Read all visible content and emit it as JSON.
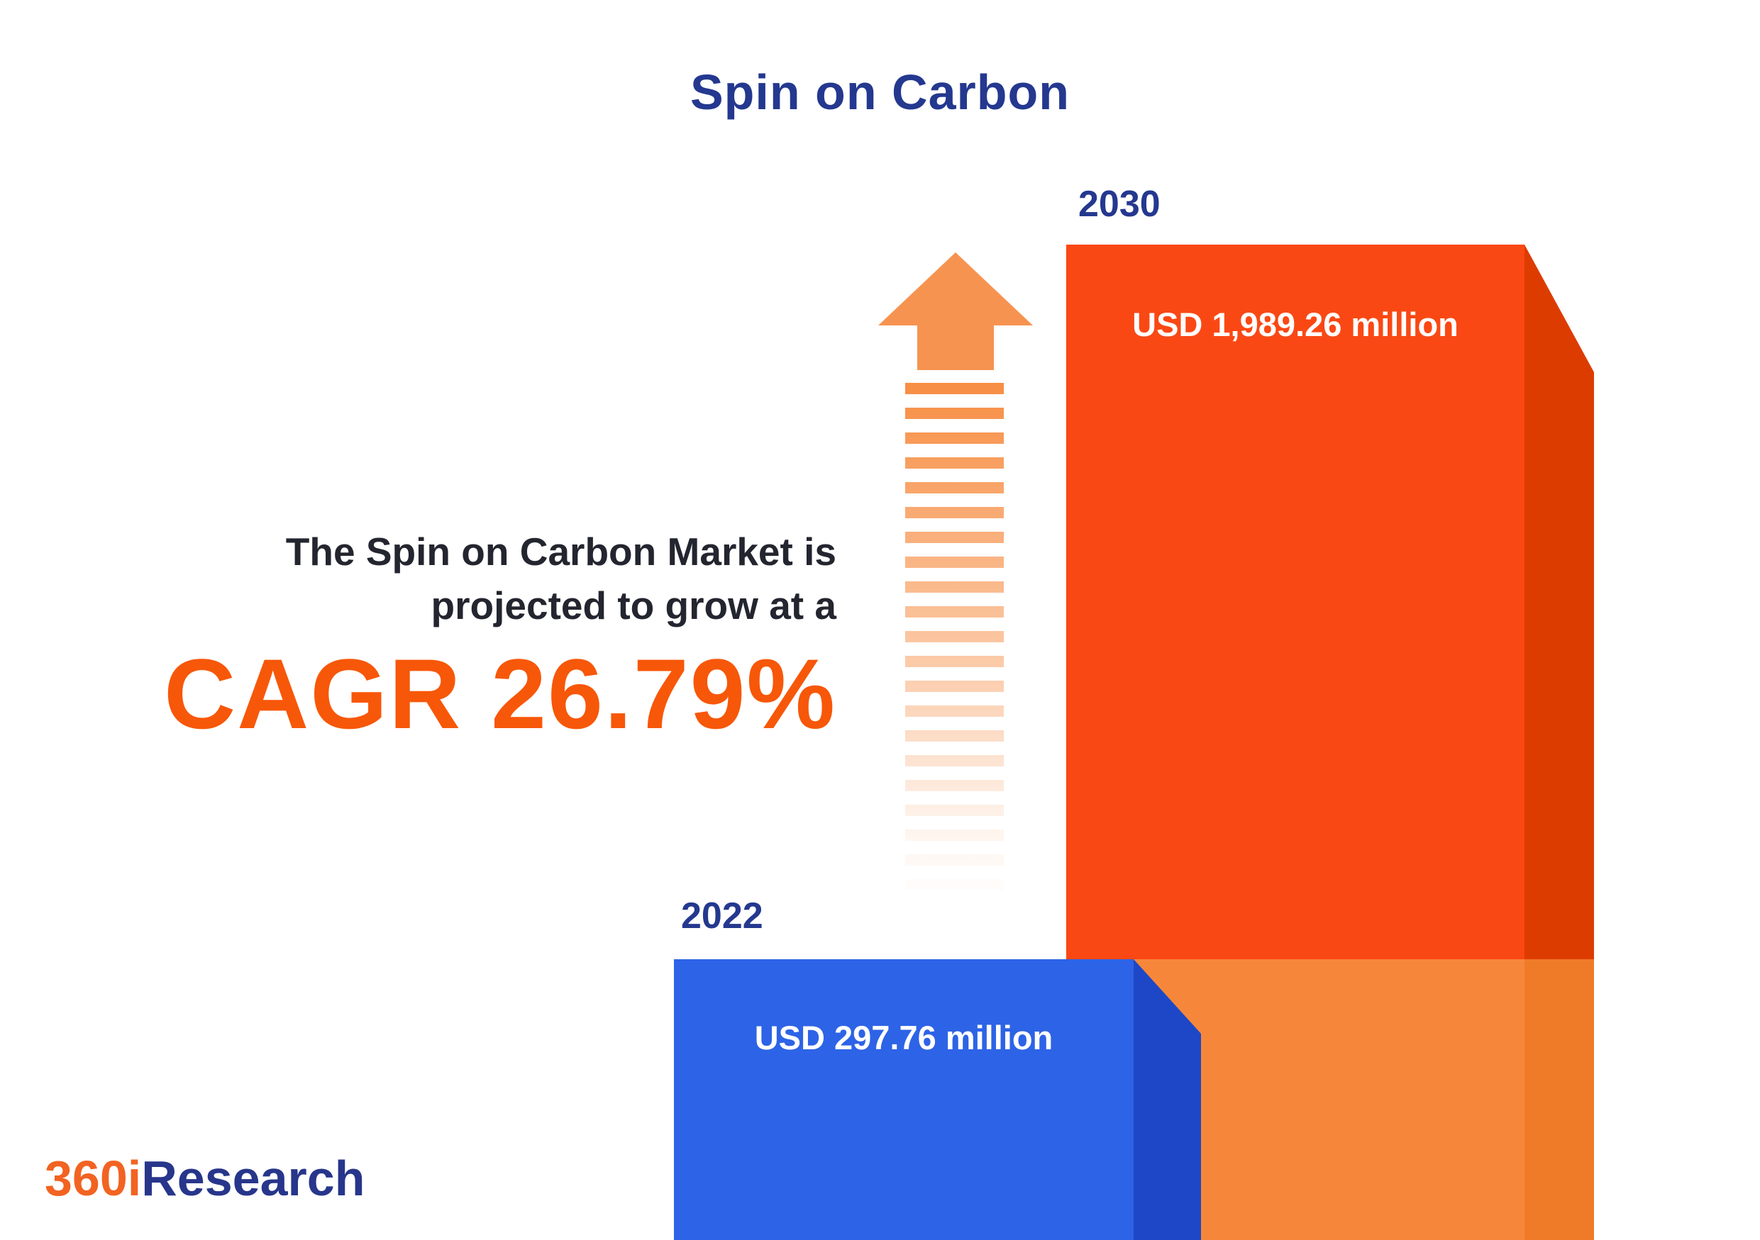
{
  "title": "Spin on Carbon",
  "chart_data": {
    "type": "bar",
    "title": "Spin on Carbon",
    "categories": [
      "2022",
      "2030"
    ],
    "values": [
      297.76,
      1989.26
    ],
    "unit": "USD million",
    "value_labels": [
      "USD 297.76 million",
      "USD 1,989.26 million"
    ],
    "cagr_percent": 26.79,
    "annotation": "The Spin on Carbon Market is projected to grow at a CAGR 26.79%",
    "legend_position": "none",
    "grid": false,
    "bar_colors": {
      "2022": "#2d63e6",
      "2030": "#fa4814"
    }
  },
  "bars": [
    {
      "year": "2022",
      "label": "USD 297.76 million"
    },
    {
      "year": "2030",
      "label": "USD 1,989.26 million"
    }
  ],
  "annotation": {
    "line1": "The Spin on Carbon Market is",
    "line2": "projected to grow at a",
    "cagr": "CAGR 26.79%"
  },
  "logo": {
    "prefix": "360i",
    "suffix": "Research"
  },
  "colors": {
    "navy": "#24388f",
    "orange_front": "#fa4814",
    "orange_side": "#dd3c00",
    "orange_base": "#f6873a",
    "blue_front": "#2d63e6",
    "blue_side": "#1d47c6",
    "cagr_orange": "#f75708",
    "arrow_orange": "#f79350",
    "text_dark": "#23252f",
    "logo_orange": "#f26322",
    "logo_navy": "#27368b"
  }
}
